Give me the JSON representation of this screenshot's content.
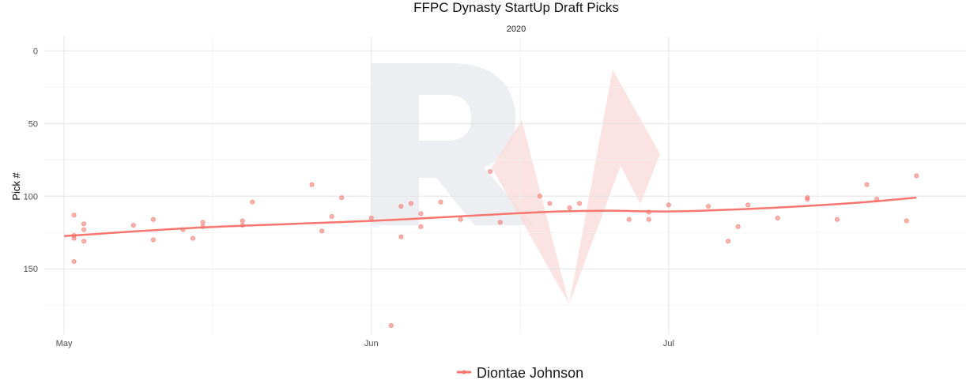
{
  "chart_data": {
    "type": "scatter",
    "title": "FFPC Dynasty StartUp Draft Picks",
    "subtitle": "2020",
    "xlabel": "",
    "ylabel": "Pick #",
    "x_ticks": [
      "May",
      "Jun",
      "Jul"
    ],
    "y_ticks": [
      0,
      50,
      100,
      150
    ],
    "y_reversed": true,
    "ylim": [
      -10,
      195
    ],
    "xlim": [
      "2020-04-29",
      "2020-07-31"
    ],
    "grid": true,
    "legend_position": "bottom",
    "series": [
      {
        "name": "Diontae Johnson",
        "color": "#f8766d",
        "points": [
          {
            "x": "2020-05-02",
            "y": 113
          },
          {
            "x": "2020-05-02",
            "y": 127
          },
          {
            "x": "2020-05-02",
            "y": 129
          },
          {
            "x": "2020-05-02",
            "y": 145
          },
          {
            "x": "2020-05-03",
            "y": 119
          },
          {
            "x": "2020-05-03",
            "y": 123
          },
          {
            "x": "2020-05-03",
            "y": 131
          },
          {
            "x": "2020-05-08",
            "y": 120
          },
          {
            "x": "2020-05-10",
            "y": 116
          },
          {
            "x": "2020-05-10",
            "y": 130
          },
          {
            "x": "2020-05-13",
            "y": 123
          },
          {
            "x": "2020-05-14",
            "y": 129
          },
          {
            "x": "2020-05-15",
            "y": 118
          },
          {
            "x": "2020-05-15",
            "y": 121
          },
          {
            "x": "2020-05-19",
            "y": 117
          },
          {
            "x": "2020-05-19",
            "y": 120
          },
          {
            "x": "2020-05-20",
            "y": 104
          },
          {
            "x": "2020-05-26",
            "y": 92
          },
          {
            "x": "2020-05-27",
            "y": 124
          },
          {
            "x": "2020-05-28",
            "y": 114
          },
          {
            "x": "2020-05-29",
            "y": 101
          },
          {
            "x": "2020-06-01",
            "y": 115
          },
          {
            "x": "2020-06-03",
            "y": 189
          },
          {
            "x": "2020-06-04",
            "y": 107
          },
          {
            "x": "2020-06-04",
            "y": 128
          },
          {
            "x": "2020-06-05",
            "y": 105
          },
          {
            "x": "2020-06-06",
            "y": 112
          },
          {
            "x": "2020-06-06",
            "y": 121
          },
          {
            "x": "2020-06-08",
            "y": 104
          },
          {
            "x": "2020-06-10",
            "y": 116
          },
          {
            "x": "2020-06-13",
            "y": 83
          },
          {
            "x": "2020-06-14",
            "y": 118
          },
          {
            "x": "2020-06-18",
            "y": 100
          },
          {
            "x": "2020-06-19",
            "y": 105
          },
          {
            "x": "2020-06-21",
            "y": 108
          },
          {
            "x": "2020-06-22",
            "y": 105
          },
          {
            "x": "2020-06-27",
            "y": 116
          },
          {
            "x": "2020-06-29",
            "y": 111
          },
          {
            "x": "2020-06-29",
            "y": 116
          },
          {
            "x": "2020-07-01",
            "y": 106
          },
          {
            "x": "2020-07-05",
            "y": 107
          },
          {
            "x": "2020-07-07",
            "y": 131
          },
          {
            "x": "2020-07-08",
            "y": 121
          },
          {
            "x": "2020-07-09",
            "y": 106
          },
          {
            "x": "2020-07-12",
            "y": 115
          },
          {
            "x": "2020-07-15",
            "y": 101
          },
          {
            "x": "2020-07-15",
            "y": 102
          },
          {
            "x": "2020-07-18",
            "y": 116
          },
          {
            "x": "2020-07-21",
            "y": 92
          },
          {
            "x": "2020-07-22",
            "y": 102
          },
          {
            "x": "2020-07-25",
            "y": 117
          },
          {
            "x": "2020-07-26",
            "y": 86
          }
        ],
        "trend": [
          {
            "x": "2020-05-01",
            "y": 127.5
          },
          {
            "x": "2020-05-15",
            "y": 121.5
          },
          {
            "x": "2020-06-01",
            "y": 117
          },
          {
            "x": "2020-06-15",
            "y": 112
          },
          {
            "x": "2020-06-20",
            "y": 110.5
          },
          {
            "x": "2020-06-25",
            "y": 110
          },
          {
            "x": "2020-07-01",
            "y": 110.5
          },
          {
            "x": "2020-07-10",
            "y": 108.5
          },
          {
            "x": "2020-07-20",
            "y": 104.5
          },
          {
            "x": "2020-07-26",
            "y": 101
          }
        ]
      }
    ]
  }
}
